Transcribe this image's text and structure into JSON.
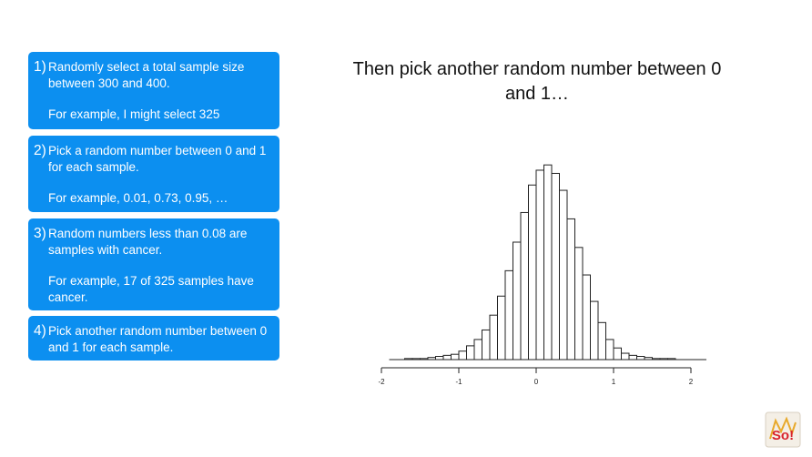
{
  "steps": [
    {
      "num": "1)",
      "text": "Randomly select a total sample size between 300 and 400.",
      "example": "For example, I might select 325"
    },
    {
      "num": "2)",
      "text": "Pick a random number between 0 and 1 for each sample.",
      "example": "For example, 0.01, 0.73, 0.95, …"
    },
    {
      "num": "3)",
      "text": "Random numbers less than 0.08 are samples with cancer.",
      "example": "For example, 17 of 325 samples have cancer."
    },
    {
      "num": "4)",
      "text": "Pick another random number between 0 and 1 for each sample.",
      "example": ""
    }
  ],
  "headline": "Then pick another random number between 0 and 1…",
  "chart_data": {
    "type": "bar",
    "title": "",
    "xlabel": "",
    "ylabel": "",
    "xlim": [
      -2,
      2.2
    ],
    "xticks": [
      -2,
      -1,
      0,
      1,
      2
    ],
    "tick_labels": [
      "-2",
      "-1",
      "0",
      "1",
      "2"
    ],
    "bin_width": 0.1,
    "bin_start": -1.9,
    "values": [
      0,
      0,
      1,
      1,
      1,
      2,
      3,
      4,
      5,
      8,
      13,
      19,
      28,
      42,
      60,
      84,
      111,
      139,
      165,
      179,
      184,
      176,
      160,
      133,
      106,
      80,
      55,
      35,
      19,
      11,
      6,
      4,
      3,
      2,
      1,
      1,
      1,
      0,
      0
    ],
    "ylim": [
      0,
      185
    ],
    "grid": false,
    "bar_fill": "#ffffff",
    "bar_stroke": "#222222"
  },
  "logo": {
    "icon": "statquest-logo",
    "text": "So!"
  }
}
